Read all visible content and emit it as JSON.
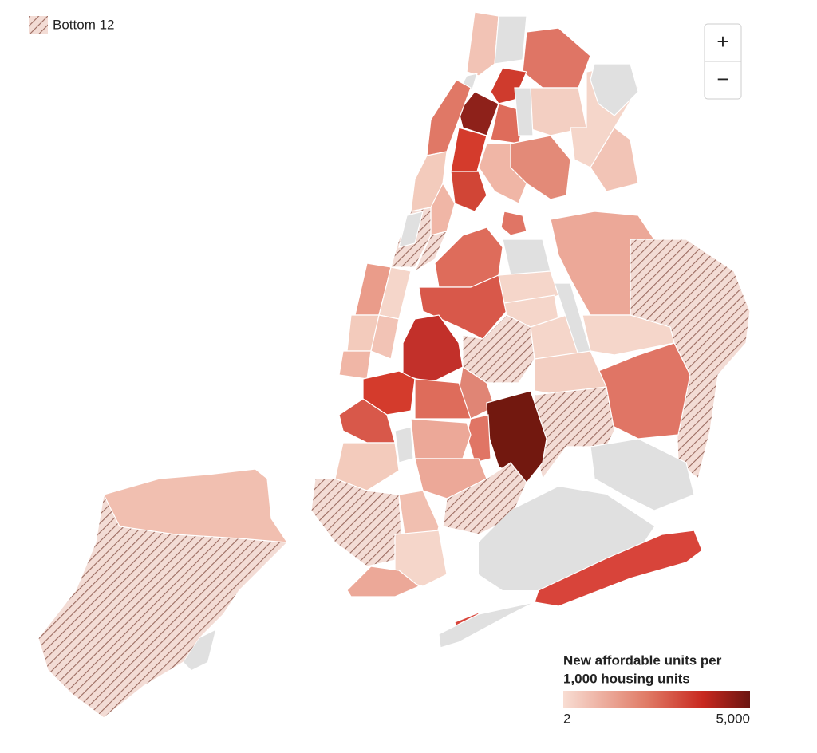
{
  "key": {
    "label": "Bottom 12"
  },
  "zoom": {
    "in": "+",
    "out": "−"
  },
  "legend": {
    "title_lines": [
      "New affordable units per",
      "1,000 housing units"
    ],
    "min_label": "2",
    "max_label": "5,000"
  }
}
